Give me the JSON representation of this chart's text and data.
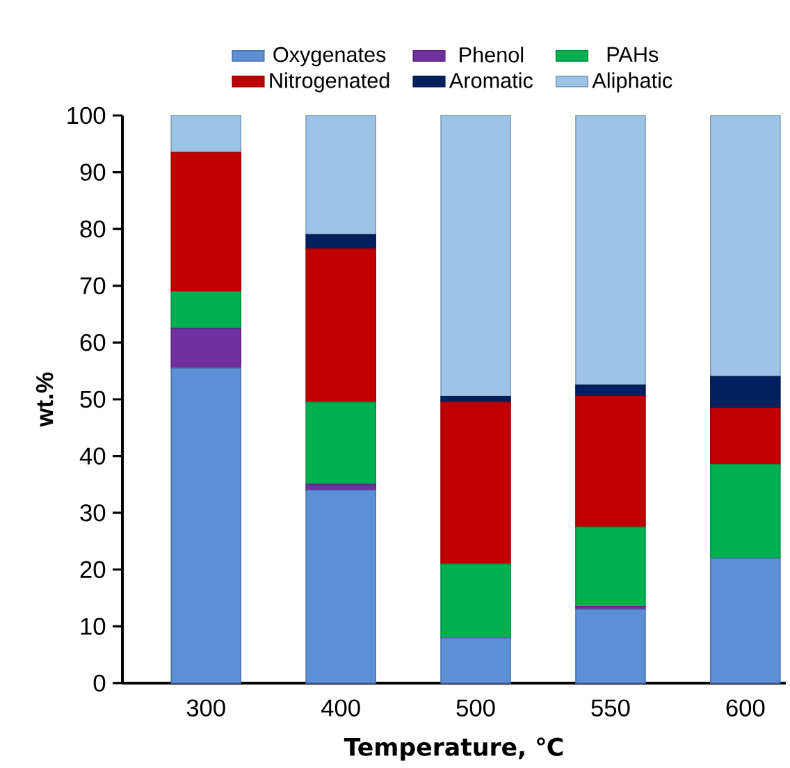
{
  "chart_data": {
    "type": "bar",
    "stacked": true,
    "xlabel": "Temperature, ℃",
    "ylabel": "wt.%",
    "categories": [
      "300",
      "400",
      "500",
      "550",
      "600"
    ],
    "series": [
      {
        "name": "Oxygenates",
        "color": "#5b8fd6",
        "values": [
          55.5,
          34,
          8,
          13,
          22
        ]
      },
      {
        "name": "Phenol",
        "color": "#7030a0",
        "values": [
          7,
          1,
          0,
          0.5,
          0
        ]
      },
      {
        "name": "PAHs",
        "color": "#00b050",
        "values": [
          6.5,
          14.5,
          13,
          14,
          16.5
        ]
      },
      {
        "name": "Nitrogenated",
        "color": "#c00000",
        "values": [
          24.5,
          27,
          28.5,
          23,
          10
        ]
      },
      {
        "name": "Aromatic",
        "color": "#002060",
        "values": [
          0,
          2.5,
          1,
          2,
          5.5
        ]
      },
      {
        "name": "Aliphatic",
        "color": "#9dc3e6",
        "values": [
          6.5,
          21,
          49.5,
          47.5,
          46
        ]
      }
    ],
    "ylim": [
      0,
      100
    ],
    "yticks": [
      0,
      10,
      20,
      30,
      40,
      50,
      60,
      70,
      80,
      90,
      100
    ],
    "grid": false,
    "legend": "top"
  }
}
